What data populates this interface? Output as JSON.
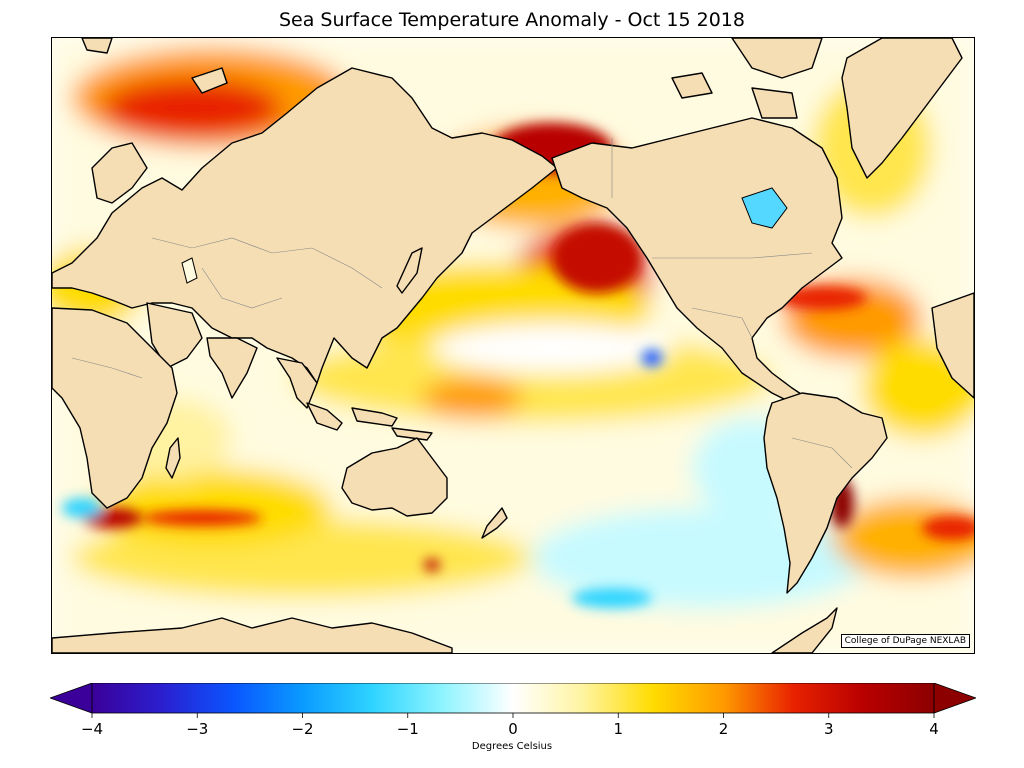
{
  "title": "Sea Surface Temperature Anomaly - Oct 15 2018",
  "credit": "College of DuPage NEXLAB",
  "colorbar": {
    "label": "Degrees Celsius",
    "min": -4,
    "max": 4,
    "ticks": [
      {
        "value": -4,
        "label": "−4"
      },
      {
        "value": -3,
        "label": "−3"
      },
      {
        "value": -2,
        "label": "−2"
      },
      {
        "value": -1,
        "label": "−1"
      },
      {
        "value": 0,
        "label": "0"
      },
      {
        "value": 1,
        "label": "1"
      },
      {
        "value": 2,
        "label": "2"
      },
      {
        "value": 3,
        "label": "3"
      },
      {
        "value": 4,
        "label": "4"
      }
    ],
    "colors": [
      "#3a0099",
      "#2b1fcf",
      "#0a55ff",
      "#0a9bff",
      "#2fd4ff",
      "#8ff4ff",
      "#ffffff",
      "#fff4a0",
      "#ffdc00",
      "#ff9a00",
      "#e82200",
      "#b80000",
      "#8c0000"
    ]
  },
  "map": {
    "land_color": "#f5deb3",
    "coast_color": "#000000",
    "border_color": "#888888"
  }
}
